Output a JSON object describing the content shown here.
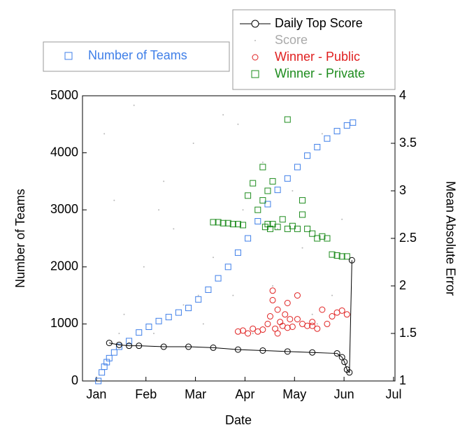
{
  "chart_data": {
    "type": "scatter",
    "xlabel": "Date",
    "ylabel": "Number of Teams",
    "y2label": "Mean Absolute Error",
    "xlim": [
      -0.14,
      6.17
    ],
    "xticks": [
      {
        "value": 0,
        "label": "Jan"
      },
      {
        "value": 1,
        "label": "Feb"
      },
      {
        "value": 2,
        "label": "Mar"
      },
      {
        "value": 3,
        "label": "Apr"
      },
      {
        "value": 4,
        "label": "May"
      },
      {
        "value": 5,
        "label": "Jun"
      },
      {
        "value": 6,
        "label": "Jul"
      }
    ],
    "ylim": [
      0,
      5000
    ],
    "yticks": [
      0,
      1000,
      2000,
      3000,
      4000,
      5000
    ],
    "y2lim": [
      1,
      4
    ],
    "y2ticks": [
      1,
      1.5,
      2,
      2.5,
      3,
      3.5,
      4
    ],
    "series": [
      {
        "name": "Number of Teams",
        "color": "#3f7fe8",
        "marker": "square",
        "axis": "y",
        "x": [
          0.18,
          0.25,
          0.3,
          0.35,
          0.4,
          0.5,
          0.6,
          0.8,
          1.0,
          1.2,
          1.4,
          1.6,
          1.8,
          2.0,
          2.2,
          2.4,
          2.6,
          2.8,
          3.0,
          3.2,
          3.4,
          3.6,
          3.8,
          4.0,
          4.2,
          4.4,
          4.6,
          4.8,
          5.0,
          5.2,
          5.32
        ],
        "values": [
          0,
          150,
          250,
          330,
          400,
          500,
          600,
          700,
          850,
          950,
          1050,
          1120,
          1200,
          1280,
          1430,
          1600,
          1800,
          2000,
          2250,
          2500,
          2800,
          3100,
          3350,
          3550,
          3750,
          3950,
          4100,
          4250,
          4380,
          4480,
          4530
        ]
      },
      {
        "name": "Daily Top Score",
        "color": "#000000",
        "marker": "circle-line",
        "axis": "y2",
        "x": [
          0.4,
          0.6,
          0.8,
          1.0,
          1.5,
          2.0,
          2.5,
          3.0,
          3.5,
          4.0,
          4.5,
          5.0,
          5.1,
          5.15,
          5.2,
          5.25,
          5.3
        ],
        "values": [
          1.4,
          1.38,
          1.37,
          1.37,
          1.36,
          1.36,
          1.35,
          1.33,
          1.32,
          1.31,
          1.3,
          1.29,
          1.25,
          1.2,
          1.12,
          1.09,
          2.27
        ]
      },
      {
        "name": "Score",
        "color": "#b8b8b8",
        "marker": "dot",
        "axis": "y2",
        "x": [
          0.3,
          0.5,
          0.7,
          0.9,
          1.1,
          1.3,
          1.5,
          1.7,
          1.9,
          2.1,
          2.3,
          2.5,
          2.7,
          2.9,
          3.1,
          3.3,
          3.5,
          3.7,
          3.9,
          4.1,
          4.3,
          4.5,
          4.7,
          4.9,
          5.1,
          0.6,
          1.4,
          2.2,
          3.0,
          3.8,
          4.6
        ],
        "values": [
          3.6,
          2.9,
          1.7,
          3.9,
          2.2,
          1.5,
          3.1,
          2.6,
          1.8,
          3.5,
          1.6,
          2.3,
          3.8,
          1.9,
          2.8,
          1.5,
          3.3,
          2.0,
          1.6,
          3.0,
          2.4,
          1.7,
          3.6,
          1.9,
          2.7,
          1.5,
          2.8,
          1.9,
          3.7,
          2.6,
          1.6
        ]
      },
      {
        "name": "Winner - Public",
        "color": "#e02020",
        "marker": "circle",
        "axis": "y2",
        "x": [
          3.0,
          3.1,
          3.2,
          3.3,
          3.4,
          3.5,
          3.6,
          3.65,
          3.7,
          3.75,
          3.8,
          3.85,
          3.9,
          3.95,
          4.0,
          4.05,
          4.1,
          4.2,
          4.3,
          4.4,
          4.5,
          4.6,
          4.7,
          4.8,
          4.9,
          5.0,
          5.1,
          5.2,
          3.7,
          3.8,
          4.0,
          4.2,
          4.5
        ],
        "values": [
          1.52,
          1.53,
          1.5,
          1.55,
          1.52,
          1.54,
          1.6,
          1.68,
          1.85,
          1.55,
          1.75,
          1.62,
          1.58,
          1.7,
          1.56,
          1.65,
          1.57,
          1.9,
          1.6,
          1.58,
          1.62,
          1.55,
          1.75,
          1.6,
          1.68,
          1.72,
          1.74,
          1.7,
          1.95,
          1.5,
          1.82,
          1.65,
          1.58
        ]
      },
      {
        "name": "Winner - Private",
        "color": "#1e8c1e",
        "marker": "square",
        "axis": "y2",
        "x": [
          2.5,
          2.6,
          2.7,
          2.8,
          2.9,
          3.0,
          3.1,
          3.2,
          3.3,
          3.4,
          3.5,
          3.55,
          3.6,
          3.65,
          3.7,
          3.8,
          3.9,
          4.0,
          4.1,
          4.2,
          4.3,
          4.4,
          4.5,
          4.6,
          4.7,
          4.8,
          4.9,
          5.0,
          5.1,
          5.2,
          3.5,
          3.7,
          4.0,
          4.3,
          3.6
        ],
        "values": [
          2.67,
          2.67,
          2.66,
          2.66,
          2.65,
          2.65,
          2.64,
          2.95,
          3.08,
          2.8,
          2.9,
          2.62,
          2.65,
          2.6,
          2.65,
          2.62,
          2.7,
          2.6,
          2.63,
          2.6,
          2.75,
          2.6,
          2.55,
          2.5,
          2.52,
          2.5,
          2.33,
          2.32,
          2.31,
          2.31,
          3.25,
          3.1,
          3.75,
          2.9,
          3.0
        ]
      }
    ]
  }
}
